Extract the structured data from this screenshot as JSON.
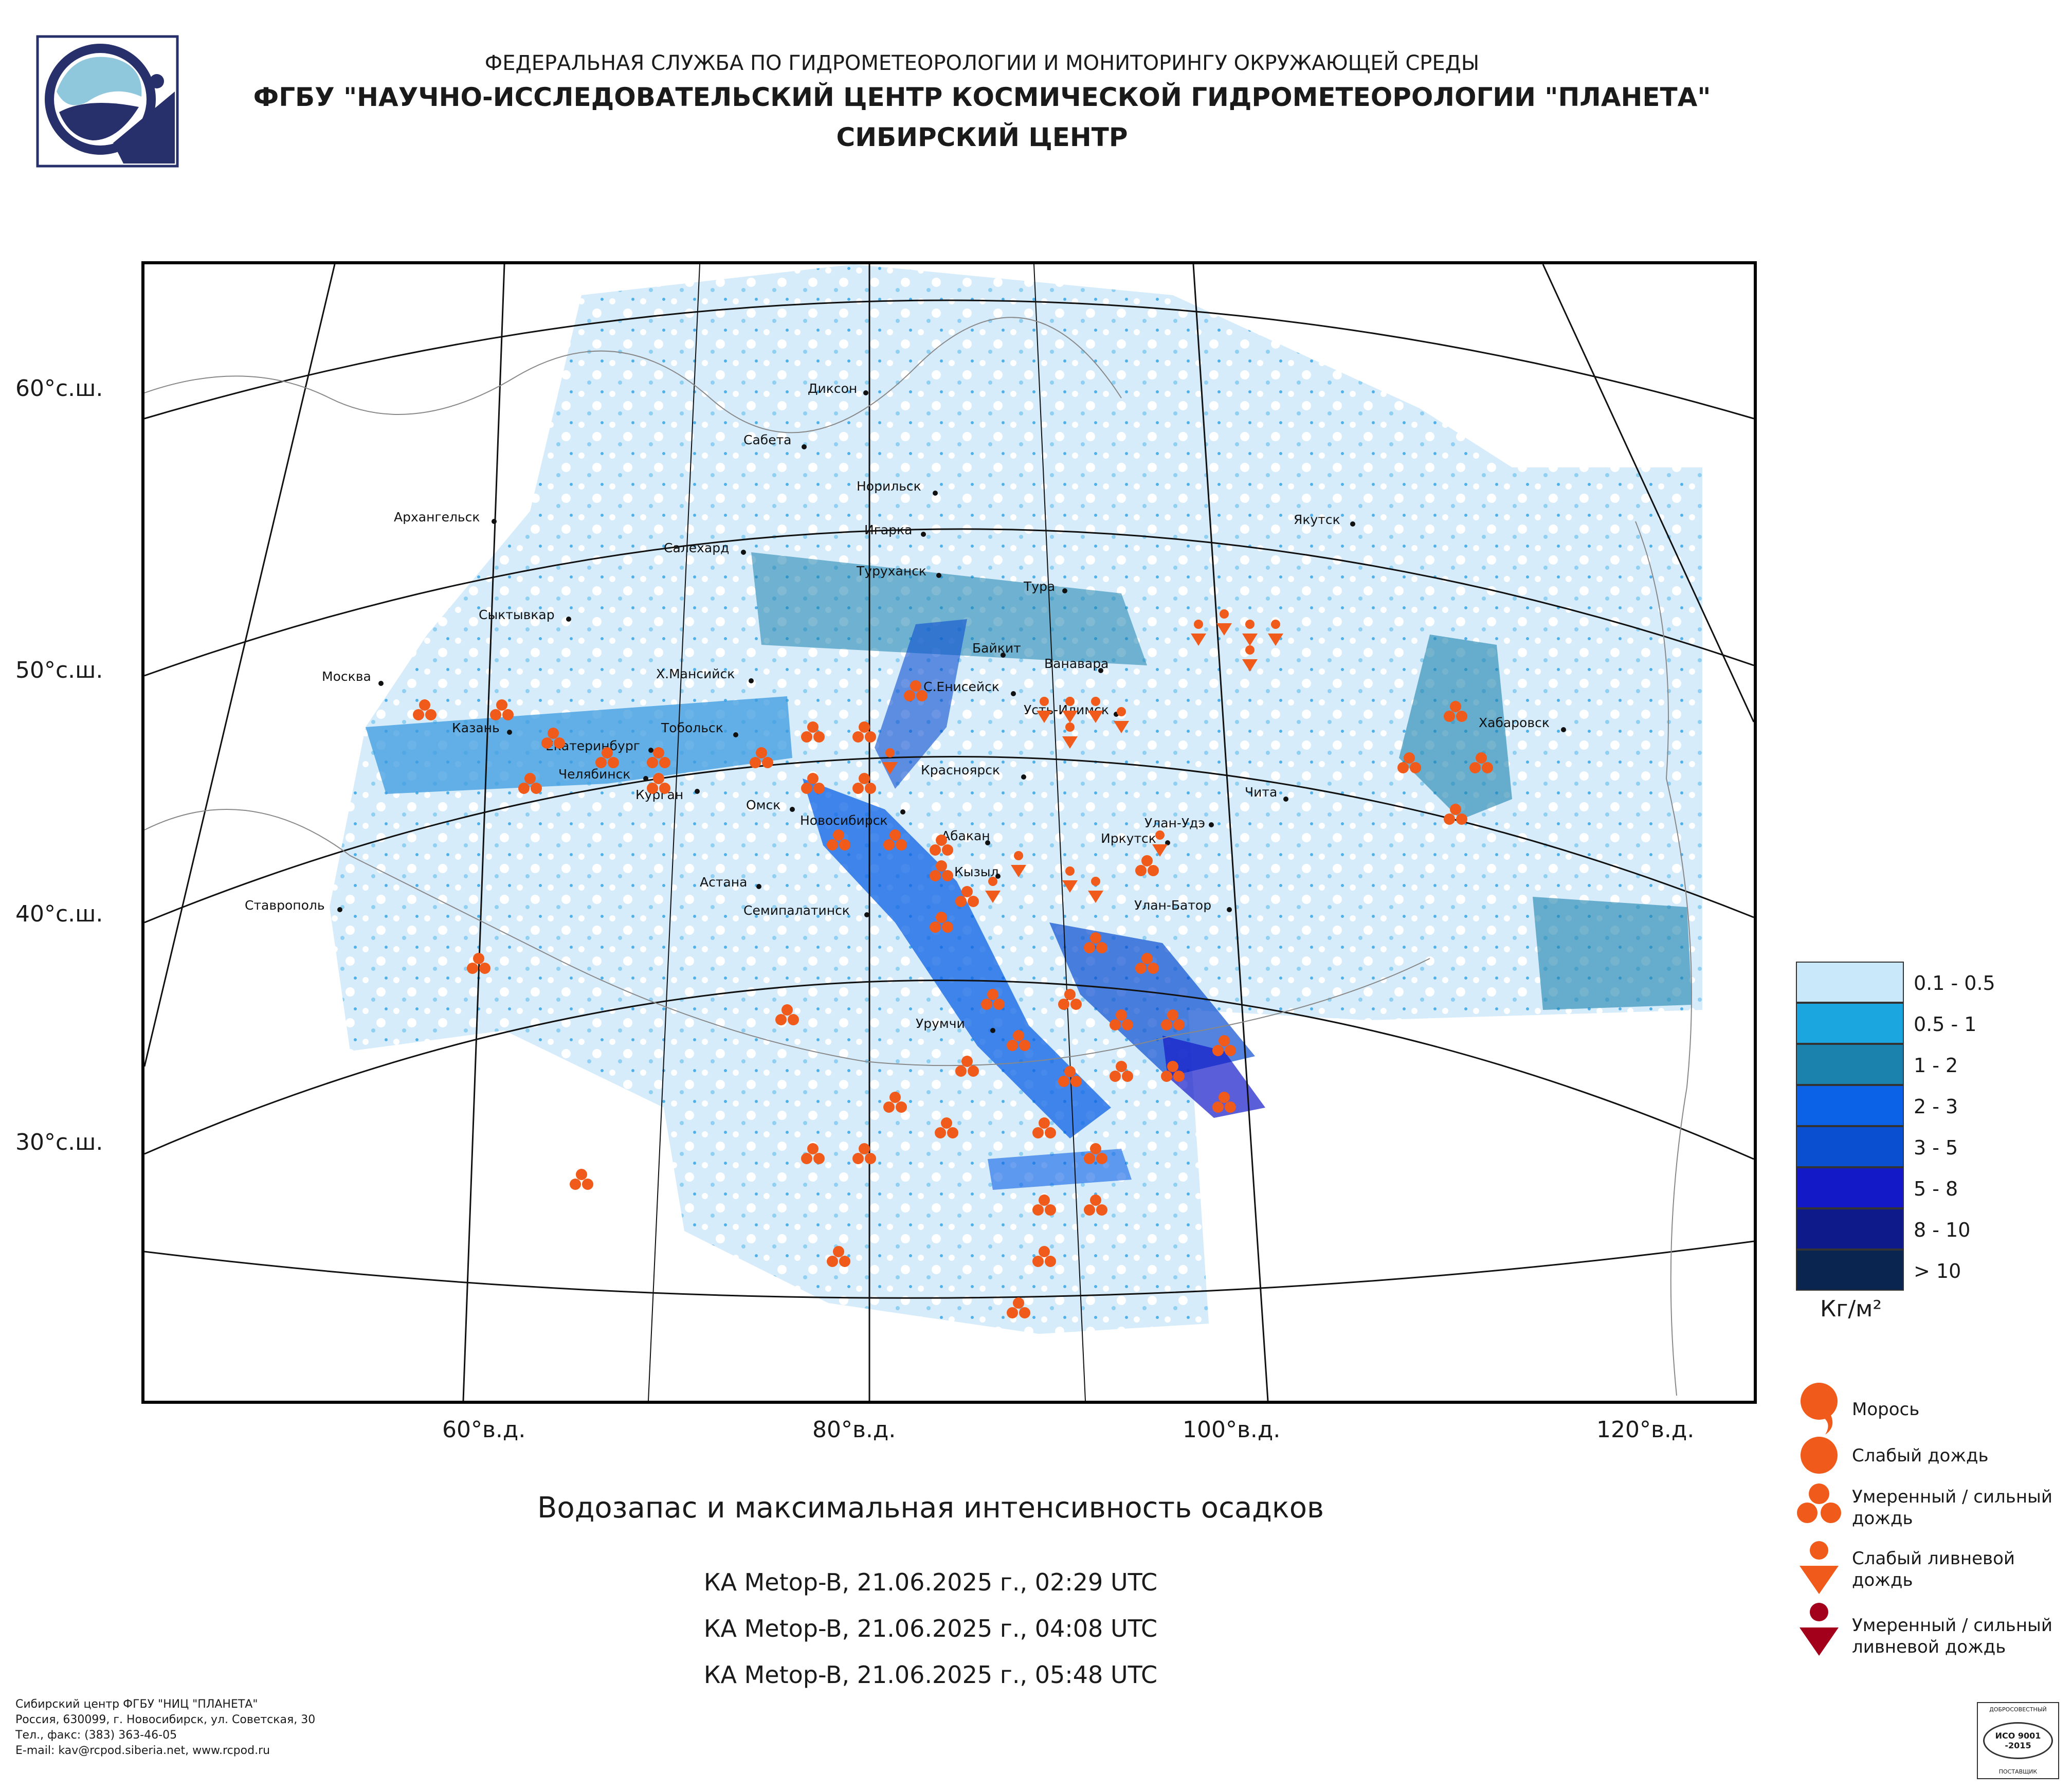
{
  "header": {
    "line1": "ФЕДЕРАЛЬНАЯ СЛУЖБА ПО ГИДРОМЕТЕОРОЛОГИИ И МОНИТОРИНГУ ОКРУЖАЮЩЕЙ СРЕДЫ",
    "line2": "ФГБУ \"НАУЧНО-ИССЛЕДОВАТЕЛЬСКИЙ ЦЕНТР КОСМИЧЕСКОЙ ГИДРОМЕТЕОРОЛОГИИ \"ПЛАНЕТА\"",
    "line3": "СИБИРСКИЙ ЦЕНТР"
  },
  "axes": {
    "lat_labels": [
      "60°с.ш.",
      "50°с.ш.",
      "40°с.ш.",
      "30°с.ш."
    ],
    "lon_labels": [
      "60°в.д.",
      "80°в.д.",
      "100°в.д.",
      "120°в.д."
    ]
  },
  "cities": [
    "Диксон",
    "Сабета",
    "Норильск",
    "Архангельск",
    "Якутск",
    "Салехард",
    "Игарка",
    "Туруханск",
    "Тура",
    "Сыктывкар",
    "Байкит",
    "Ванавара",
    "Москва",
    "Х.Мансийск",
    "С.Енисейск",
    "Усть-Илимск",
    "Хабаровск",
    "Казань",
    "Тобольск",
    "Екатеринбург",
    "Челябинск",
    "Курган",
    "Красноярск",
    "Чита",
    "Омск",
    "Новосибирск",
    "Абакан",
    "Улан-Удэ",
    "Иркутск",
    "Кызыл",
    "Астана",
    "Ставрополь",
    "Семипалатинск",
    "Улан-Батор",
    "Урумчи"
  ],
  "title": "Водозапас и максимальная интенсивность осадков",
  "passes": [
    "КА Metop-B, 21.06.2025 г., 02:29 UTC",
    "КА Metop-B, 21.06.2025 г., 04:08 UTC",
    "КА Metop-B, 21.06.2025 г., 05:48 UTC"
  ],
  "legend": {
    "unit": "Кг/м²",
    "classes": [
      {
        "label": "0.1 - 0.5",
        "color": "#c9e8f9"
      },
      {
        "label": "0.5 - 1",
        "color": "#1ba6e0"
      },
      {
        "label": "1 - 2",
        "color": "#1a82ad"
      },
      {
        "label": "2 - 3",
        "color": "#0b62e6"
      },
      {
        "label": "3 - 5",
        "color": "#0a4fd0"
      },
      {
        "label": "5 - 8",
        "color": "#1419c8"
      },
      {
        "label": "8 - 10",
        "color": "#0e1a8a"
      },
      {
        "label": "> 10",
        "color": "#0a2550"
      }
    ],
    "symbols": [
      {
        "label": "Морось",
        "color": "#f05a1a"
      },
      {
        "label": "Слабый дождь",
        "color": "#f05a1a"
      },
      {
        "label": "Умеренный / сильный дождь",
        "color": "#f05a1a"
      },
      {
        "label": "Слабый ливневой дождь",
        "color": "#f05a1a"
      },
      {
        "label": "Умеренный / сильный ливневой дождь",
        "color": "#a3001c"
      }
    ]
  },
  "footer": [
    "Сибирский центр ФГБУ \"НИЦ \"ПЛАНЕТА\"",
    "Россия, 630099, г. Новосибирск, ул. Советская, 30",
    "Тел., факс: (383) 363-46-05",
    "E-mail: kav@rcpod.siberia.net, www.rcpod.ru"
  ],
  "iso_badge": {
    "top": "ДОБРОСОВЕСТНЫЙ",
    "middle": "ИСО 9001 -2015",
    "bottom": "ПОСТАВЩИК"
  }
}
